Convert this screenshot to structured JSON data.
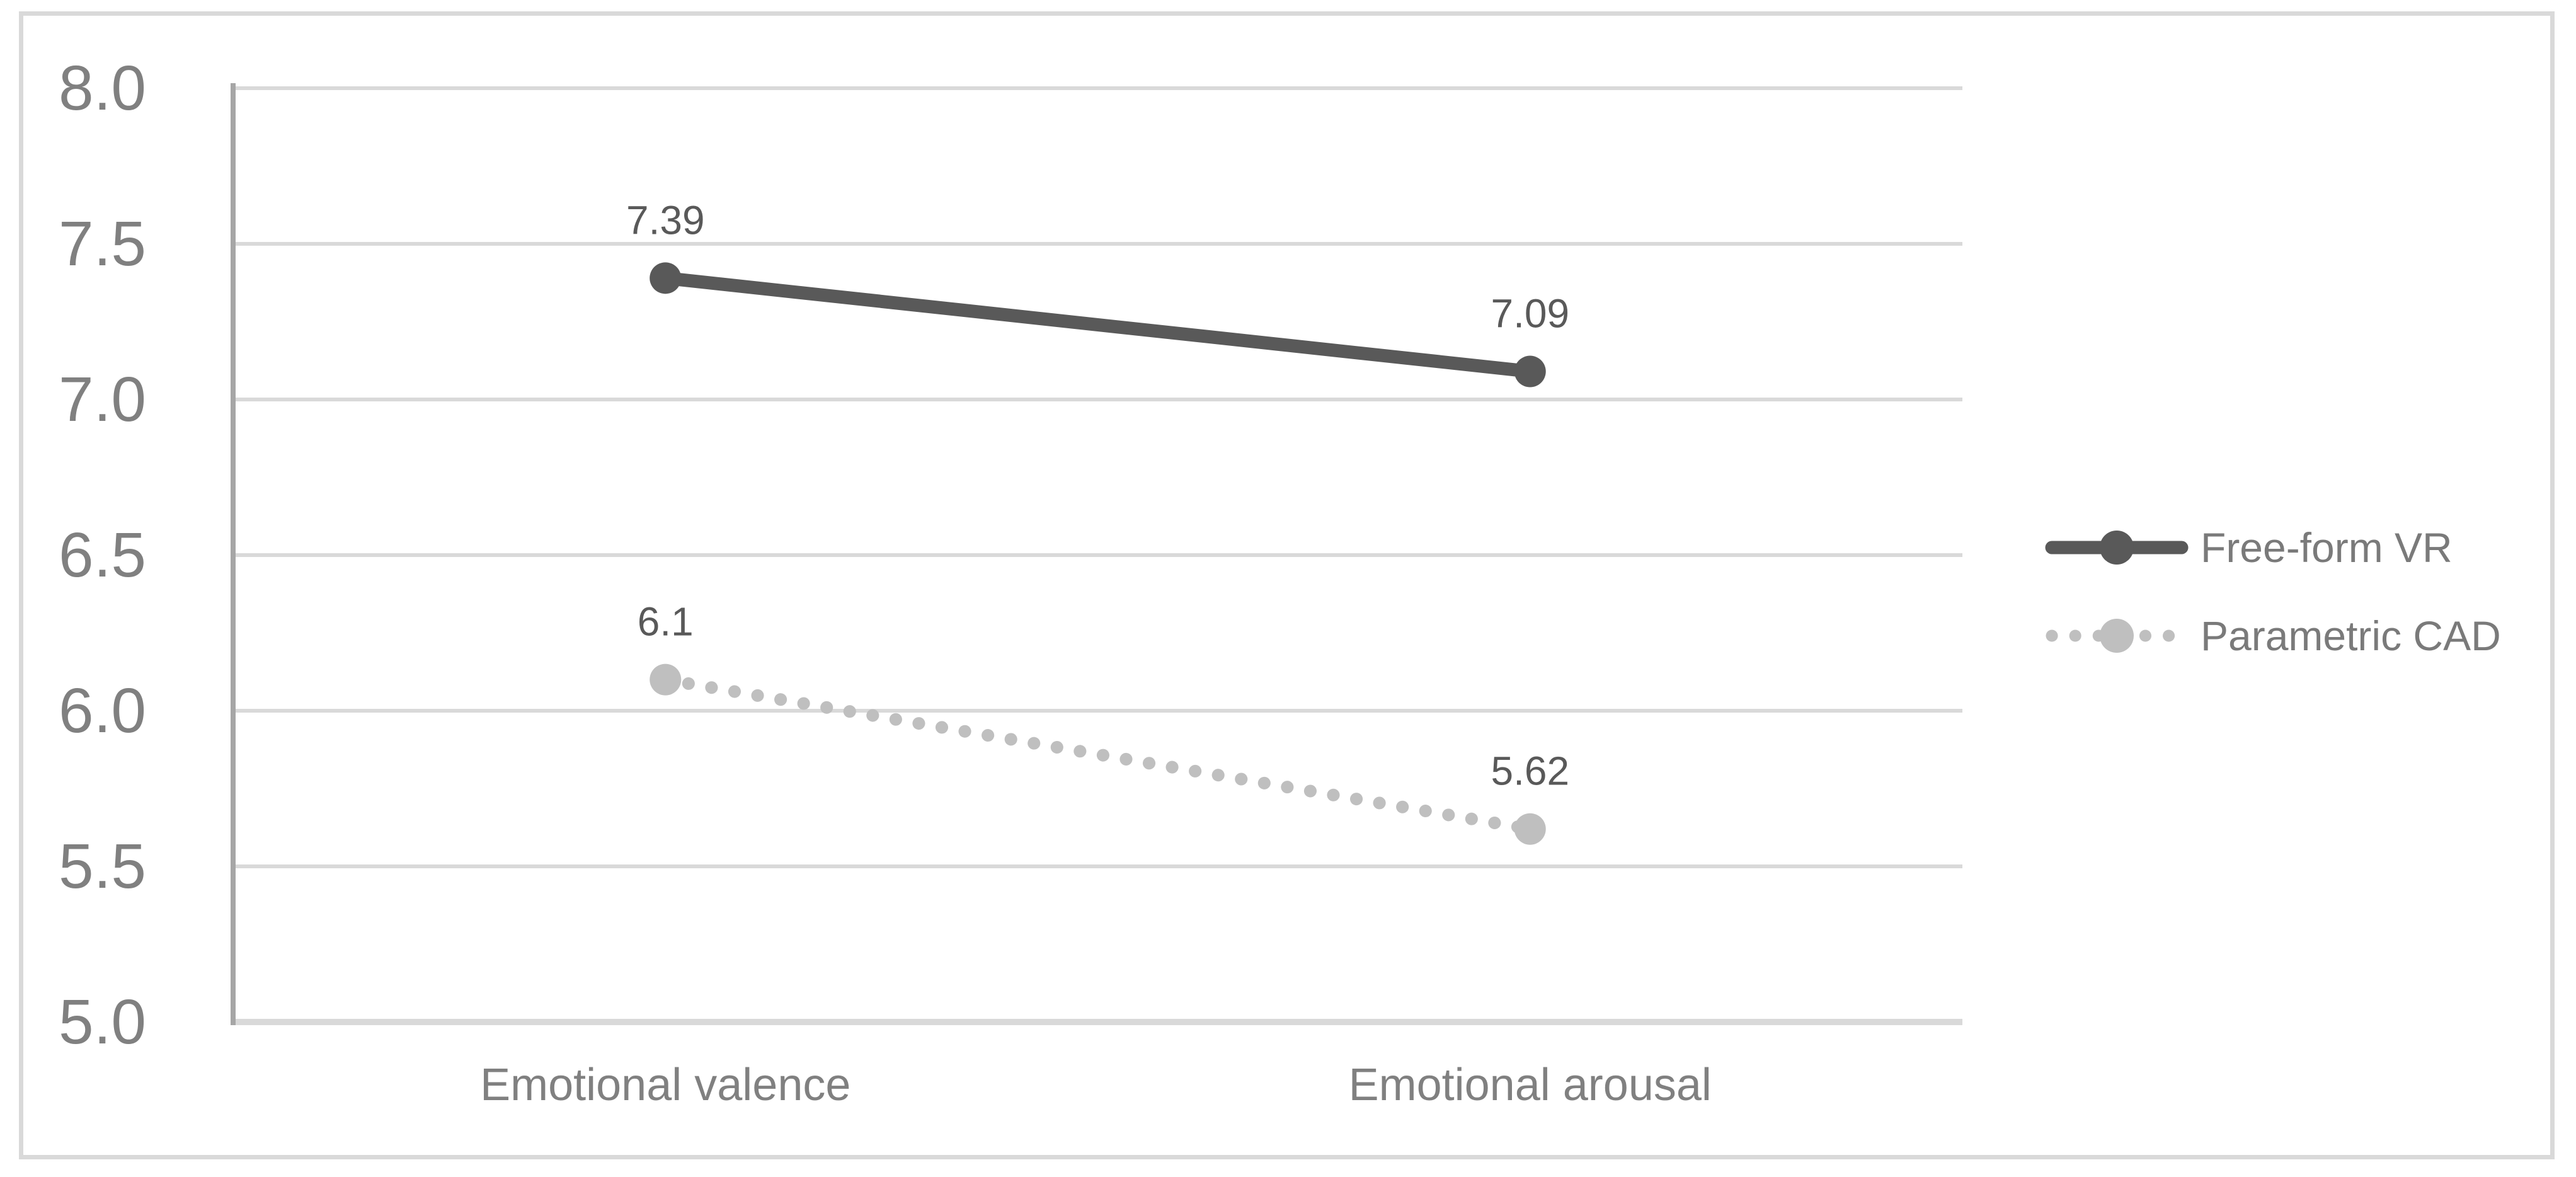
{
  "chart_data": {
    "type": "line",
    "title": "",
    "xlabel": "",
    "ylabel": "",
    "categories": [
      "Emotional valence",
      "Emotional arousal"
    ],
    "series": [
      {
        "name": "Free-form VR",
        "values": [
          7.39,
          7.09
        ],
        "data_labels": [
          "7.39",
          "7.09"
        ],
        "color": "#595959",
        "line_style": "solid",
        "marker": "circle"
      },
      {
        "name": "Parametric CAD",
        "values": [
          6.1,
          5.62
        ],
        "data_labels": [
          "6.1",
          "5.62"
        ],
        "color": "#bfbfbf",
        "line_style": "dotted",
        "marker": "circle"
      }
    ],
    "ylim": [
      5.0,
      8.0
    ],
    "y_tick_step": 0.5,
    "y_ticks": [
      "8.0",
      "7.5",
      "7.0",
      "6.5",
      "6.0",
      "5.5",
      "5.0"
    ],
    "grid": true,
    "legend_position": "right"
  },
  "colors": {
    "background": "#ffffff",
    "border": "#d9d9d9",
    "gridline": "#d9d9d9",
    "axis_line": "#a6a6a6",
    "tick_label": "#808080",
    "category_label": "#808080",
    "data_label": "#595959",
    "legend_text": "#7a7a7a"
  }
}
